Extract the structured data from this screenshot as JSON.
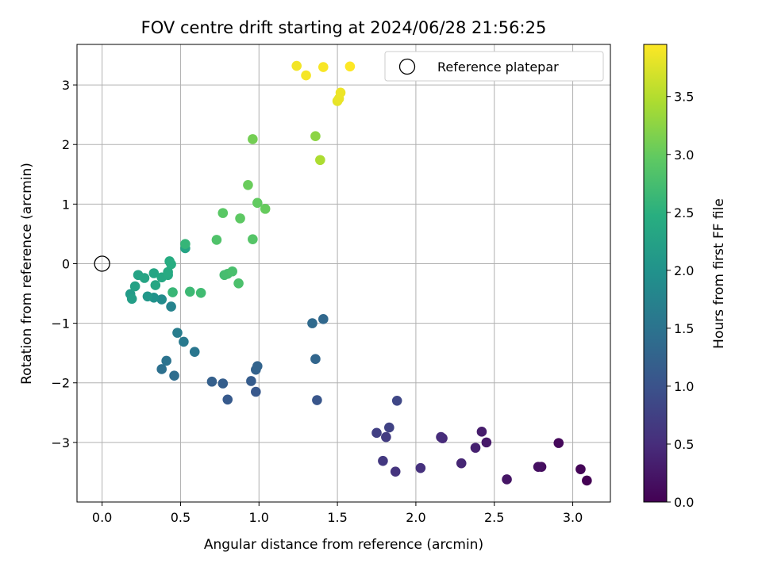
{
  "chart_data": {
    "type": "scatter",
    "title": "FOV centre drift starting at 2024/06/28 21:56:25",
    "xlabel": "Angular distance from reference (arcmin)",
    "ylabel": "Rotation from reference (arcmin)",
    "xlim": [
      -0.16,
      3.24
    ],
    "ylim": [
      -4.0,
      3.68
    ],
    "xticks": [
      "0.0",
      "0.5",
      "1.0",
      "1.5",
      "2.0",
      "2.5",
      "3.0"
    ],
    "yticks": [
      "−3",
      "−2",
      "−1",
      "0",
      "1",
      "2",
      "3"
    ],
    "grid": true,
    "legend": {
      "position": "top-right",
      "entries": [
        "Reference platepar"
      ]
    },
    "reference_point": {
      "x": 0.0,
      "y": 0.0
    },
    "colorbar": {
      "label": "Hours from first FF file",
      "range": [
        0.0,
        3.95
      ],
      "ticks": [
        "0.0",
        "0.5",
        "1.0",
        "1.5",
        "2.0",
        "2.5",
        "3.0",
        "3.5"
      ],
      "colormap": "viridis"
    },
    "points": [
      {
        "x": 3.09,
        "y": -3.64,
        "t": 0.0
      },
      {
        "x": 3.05,
        "y": -3.45,
        "t": 0.04
      },
      {
        "x": 2.91,
        "y": -3.01,
        "t": 0.09
      },
      {
        "x": 2.8,
        "y": -3.41,
        "t": 0.13
      },
      {
        "x": 2.78,
        "y": -3.41,
        "t": 0.17
      },
      {
        "x": 2.58,
        "y": -3.62,
        "t": 0.22
      },
      {
        "x": 2.45,
        "y": -3.0,
        "t": 0.27
      },
      {
        "x": 2.42,
        "y": -2.82,
        "t": 0.31
      },
      {
        "x": 2.38,
        "y": -3.09,
        "t": 0.36
      },
      {
        "x": 2.29,
        "y": -3.35,
        "t": 0.41
      },
      {
        "x": 2.17,
        "y": -2.93,
        "t": 0.45
      },
      {
        "x": 2.16,
        "y": -2.91,
        "t": 0.5
      },
      {
        "x": 2.03,
        "y": -3.43,
        "t": 0.55
      },
      {
        "x": 1.87,
        "y": -3.49,
        "t": 0.59
      },
      {
        "x": 1.79,
        "y": -3.31,
        "t": 0.64
      },
      {
        "x": 1.81,
        "y": -2.91,
        "t": 0.68
      },
      {
        "x": 1.75,
        "y": -2.84,
        "t": 0.73
      },
      {
        "x": 1.83,
        "y": -2.75,
        "t": 0.77
      },
      {
        "x": 1.88,
        "y": -2.3,
        "t": 0.84
      },
      {
        "x": 1.37,
        "y": -2.29,
        "t": 1.05
      },
      {
        "x": 0.98,
        "y": -2.15,
        "t": 1.08
      },
      {
        "x": 0.8,
        "y": -2.28,
        "t": 1.11
      },
      {
        "x": 0.95,
        "y": -1.97,
        "t": 1.14
      },
      {
        "x": 0.77,
        "y": -2.01,
        "t": 1.17
      },
      {
        "x": 0.7,
        "y": -1.98,
        "t": 1.2
      },
      {
        "x": 0.98,
        "y": -1.78,
        "t": 1.23
      },
      {
        "x": 0.99,
        "y": -1.72,
        "t": 1.26
      },
      {
        "x": 1.36,
        "y": -1.6,
        "t": 1.3
      },
      {
        "x": 1.41,
        "y": -0.93,
        "t": 1.33
      },
      {
        "x": 1.34,
        "y": -1.0,
        "t": 1.36
      },
      {
        "x": 0.46,
        "y": -1.88,
        "t": 1.4
      },
      {
        "x": 0.38,
        "y": -1.77,
        "t": 1.45
      },
      {
        "x": 0.41,
        "y": -1.63,
        "t": 1.5
      },
      {
        "x": 0.59,
        "y": -1.48,
        "t": 1.55
      },
      {
        "x": 0.52,
        "y": -1.31,
        "t": 1.6
      },
      {
        "x": 0.48,
        "y": -1.16,
        "t": 1.65
      },
      {
        "x": 0.44,
        "y": -0.72,
        "t": 1.75
      },
      {
        "x": 0.38,
        "y": -0.6,
        "t": 1.9
      },
      {
        "x": 0.33,
        "y": -0.57,
        "t": 2.0
      },
      {
        "x": 0.29,
        "y": -0.55,
        "t": 2.08
      },
      {
        "x": 0.18,
        "y": -0.51,
        "t": 2.15
      },
      {
        "x": 0.19,
        "y": -0.59,
        "t": 2.2
      },
      {
        "x": 0.21,
        "y": -0.38,
        "t": 2.25
      },
      {
        "x": 0.23,
        "y": -0.19,
        "t": 2.28
      },
      {
        "x": 0.27,
        "y": -0.24,
        "t": 2.3
      },
      {
        "x": 0.33,
        "y": -0.16,
        "t": 2.32
      },
      {
        "x": 0.34,
        "y": -0.36,
        "t": 2.34
      },
      {
        "x": 0.38,
        "y": -0.23,
        "t": 2.36
      },
      {
        "x": 0.42,
        "y": -0.19,
        "t": 2.38
      },
      {
        "x": 0.42,
        "y": -0.14,
        "t": 2.4
      },
      {
        "x": 0.43,
        "y": 0.04,
        "t": 2.42
      },
      {
        "x": 0.44,
        "y": -0.01,
        "t": 2.44
      },
      {
        "x": 0.53,
        "y": 0.26,
        "t": 2.3
      },
      {
        "x": 0.53,
        "y": 0.33,
        "t": 2.6
      },
      {
        "x": 0.45,
        "y": -0.48,
        "t": 2.62
      },
      {
        "x": 0.56,
        "y": -0.47,
        "t": 2.66
      },
      {
        "x": 0.63,
        "y": -0.49,
        "t": 2.7
      },
      {
        "x": 0.78,
        "y": -0.19,
        "t": 2.73
      },
      {
        "x": 0.8,
        "y": -0.17,
        "t": 2.75
      },
      {
        "x": 0.83,
        "y": -0.13,
        "t": 2.78
      },
      {
        "x": 0.87,
        "y": -0.33,
        "t": 2.8
      },
      {
        "x": 0.73,
        "y": 0.4,
        "t": 2.83
      },
      {
        "x": 0.96,
        "y": 0.41,
        "t": 2.88
      },
      {
        "x": 0.77,
        "y": 0.85,
        "t": 2.92
      },
      {
        "x": 0.88,
        "y": 0.76,
        "t": 2.95
      },
      {
        "x": 0.99,
        "y": 1.02,
        "t": 2.98
      },
      {
        "x": 1.04,
        "y": 0.92,
        "t": 3.01
      },
      {
        "x": 0.93,
        "y": 1.32,
        "t": 3.03
      },
      {
        "x": 0.96,
        "y": 2.09,
        "t": 3.1
      },
      {
        "x": 1.36,
        "y": 2.14,
        "t": 3.25
      },
      {
        "x": 1.39,
        "y": 1.74,
        "t": 3.45
      },
      {
        "x": 1.5,
        "y": 2.73,
        "t": 3.8
      },
      {
        "x": 1.51,
        "y": 2.77,
        "t": 3.83
      },
      {
        "x": 1.52,
        "y": 2.87,
        "t": 3.85
      },
      {
        "x": 1.24,
        "y": 3.32,
        "t": 3.88
      },
      {
        "x": 1.3,
        "y": 3.16,
        "t": 3.9
      },
      {
        "x": 1.41,
        "y": 3.3,
        "t": 3.92
      },
      {
        "x": 1.58,
        "y": 3.31,
        "t": 3.95
      }
    ]
  }
}
